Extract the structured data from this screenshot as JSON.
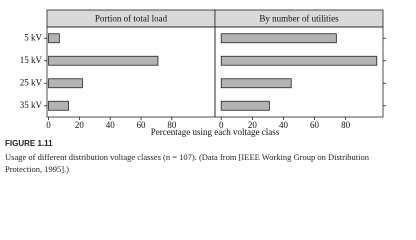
{
  "chart_data": {
    "type": "bar",
    "orientation": "horizontal",
    "categories": [
      "5 kV",
      "15 kV",
      "25 kV",
      "35 kV"
    ],
    "xlabel": "Percentage using each voltage class",
    "color": "#b3b3b3",
    "panels": [
      {
        "title": "Portion of total load",
        "values": [
          7,
          71,
          22,
          13
        ],
        "xlim": [
          -1,
          108
        ],
        "xticks": [
          0,
          20,
          40,
          60,
          80
        ]
      },
      {
        "title": "By number of utilities",
        "values": [
          74,
          100,
          45,
          31
        ],
        "xlim": [
          -4,
          104
        ],
        "xticks": [
          0,
          20,
          40,
          60,
          80
        ]
      }
    ]
  },
  "figure_label": "FIGURE 1.11",
  "caption": "Usage of different distribution voltage classes (n = 107). (Data from [IEEE Working Group on Distribution Protection, 1995].)"
}
